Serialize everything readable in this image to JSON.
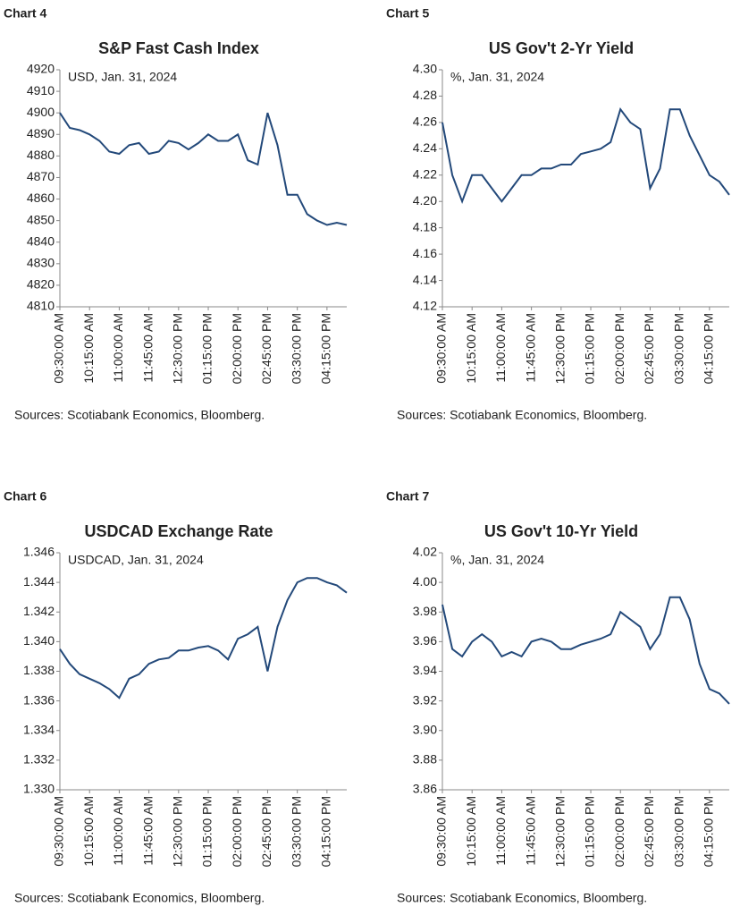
{
  "chart_data": [
    {
      "type": "line",
      "label": "Chart 4",
      "title": "S&P Fast Cash Index",
      "subtitle": "USD, Jan. 31, 2024",
      "source": "Sources: Scotiabank Economics, Bloomberg.",
      "categories": [
        "09:30:00 AM",
        null,
        null,
        "10:15:00 AM",
        null,
        null,
        "11:00:00 AM",
        null,
        null,
        "11:45:00 AM",
        null,
        null,
        "12:30:00 PM",
        null,
        null,
        "01:15:00 PM",
        null,
        null,
        "02:00:00 PM",
        null,
        null,
        "02:45:00 PM",
        null,
        null,
        "03:30:00 PM",
        null,
        null,
        "04:15:00 PM",
        null,
        null
      ],
      "values": [
        4900,
        4893,
        4892,
        4890,
        4887,
        4882,
        4881,
        4885,
        4886,
        4881,
        4882,
        4887,
        4886,
        4883,
        4886,
        4890,
        4887,
        4887,
        4890,
        4878,
        4876,
        4900,
        4885,
        4862,
        4862,
        4853,
        4850,
        4848,
        4849,
        4848
      ],
      "color": "#23497a",
      "ylim": [
        4810,
        4920
      ],
      "yticks": [
        4810,
        4820,
        4830,
        4840,
        4850,
        4860,
        4870,
        4880,
        4890,
        4900,
        4910,
        4920
      ]
    },
    {
      "type": "line",
      "label": "Chart 5",
      "title": "US Gov't 2-Yr Yield",
      "subtitle": "%, Jan. 31, 2024",
      "source": "Sources: Scotiabank Economics, Bloomberg.",
      "categories": [
        "09:30:00 AM",
        null,
        null,
        "10:15:00 AM",
        null,
        null,
        "11:00:00 AM",
        null,
        null,
        "11:45:00 AM",
        null,
        null,
        "12:30:00 PM",
        null,
        null,
        "01:15:00 PM",
        null,
        null,
        "02:00:00 PM",
        null,
        null,
        "02:45:00 PM",
        null,
        null,
        "03:30:00 PM",
        null,
        null,
        "04:15:00 PM",
        null,
        null
      ],
      "values": [
        4.26,
        4.22,
        4.2,
        4.22,
        4.22,
        4.21,
        4.2,
        4.21,
        4.22,
        4.22,
        4.225,
        4.225,
        4.228,
        4.228,
        4.236,
        4.238,
        4.24,
        4.245,
        4.27,
        4.26,
        4.255,
        4.21,
        4.225,
        4.27,
        4.27,
        4.25,
        4.235,
        4.22,
        4.215,
        4.205
      ],
      "color": "#23497a",
      "ylim": [
        4.12,
        4.3
      ],
      "yticks": [
        4.12,
        4.14,
        4.16,
        4.18,
        {
          "value": 4.2,
          "label": "4.20"
        },
        4.22,
        4.24,
        4.26,
        4.28,
        {
          "value": 4.3,
          "label": "4.30"
        }
      ]
    },
    {
      "type": "line",
      "label": "Chart 6",
      "title": "USDCAD Exchange Rate",
      "subtitle": "USDCAD, Jan. 31, 2024",
      "source": "Sources: Scotiabank Economics, Bloomberg.",
      "categories": [
        "09:30:00 AM",
        null,
        null,
        "10:15:00 AM",
        null,
        null,
        "11:00:00 AM",
        null,
        null,
        "11:45:00 AM",
        null,
        null,
        "12:30:00 PM",
        null,
        null,
        "01:15:00 PM",
        null,
        null,
        "02:00:00 PM",
        null,
        null,
        "02:45:00 PM",
        null,
        null,
        "03:30:00 PM",
        null,
        null,
        "04:15:00 PM",
        null,
        null
      ],
      "values": [
        1.3395,
        1.3385,
        1.3378,
        1.3375,
        1.3372,
        1.3368,
        1.3362,
        1.3375,
        1.3378,
        1.3385,
        1.3388,
        1.3389,
        1.3394,
        1.3394,
        1.3396,
        1.3397,
        1.3394,
        1.3388,
        1.3402,
        1.3405,
        1.341,
        1.338,
        1.341,
        1.3428,
        1.344,
        1.3443,
        1.3443,
        1.344,
        1.3438,
        1.3433
      ],
      "color": "#23497a",
      "ylim": [
        1.33,
        1.346
      ],
      "yticks": [
        {
          "value": 1.33,
          "label": "1.330"
        },
        1.332,
        1.334,
        1.336,
        1.338,
        {
          "value": 1.34,
          "label": "1.340"
        },
        1.342,
        1.344,
        1.346
      ]
    },
    {
      "type": "line",
      "label": "Chart 7",
      "title": "US Gov't 10-Yr Yield",
      "subtitle": "%, Jan. 31, 2024",
      "source": "Sources: Scotiabank Economics, Bloomberg.",
      "categories": [
        "09:30:00 AM",
        null,
        null,
        "10:15:00 AM",
        null,
        null,
        "11:00:00 AM",
        null,
        null,
        "11:45:00 AM",
        null,
        null,
        "12:30:00 PM",
        null,
        null,
        "01:15:00 PM",
        null,
        null,
        "02:00:00 PM",
        null,
        null,
        "02:45:00 PM",
        null,
        null,
        "03:30:00 PM",
        null,
        null,
        "04:15:00 PM",
        null,
        null
      ],
      "values": [
        3.985,
        3.955,
        3.95,
        3.96,
        3.965,
        3.96,
        3.95,
        3.953,
        3.95,
        3.96,
        3.962,
        3.96,
        3.955,
        3.955,
        3.958,
        3.96,
        3.962,
        3.965,
        3.98,
        3.975,
        3.97,
        3.955,
        3.965,
        3.99,
        3.99,
        3.975,
        3.945,
        3.928,
        3.925,
        3.918
      ],
      "color": "#23497a",
      "ylim": [
        3.86,
        4.02
      ],
      "yticks": [
        3.86,
        3.88,
        {
          "value": 3.9,
          "label": "3.90"
        },
        3.92,
        3.94,
        3.96,
        3.98,
        {
          "value": 4,
          "label": "4.00"
        },
        4.02
      ]
    }
  ]
}
